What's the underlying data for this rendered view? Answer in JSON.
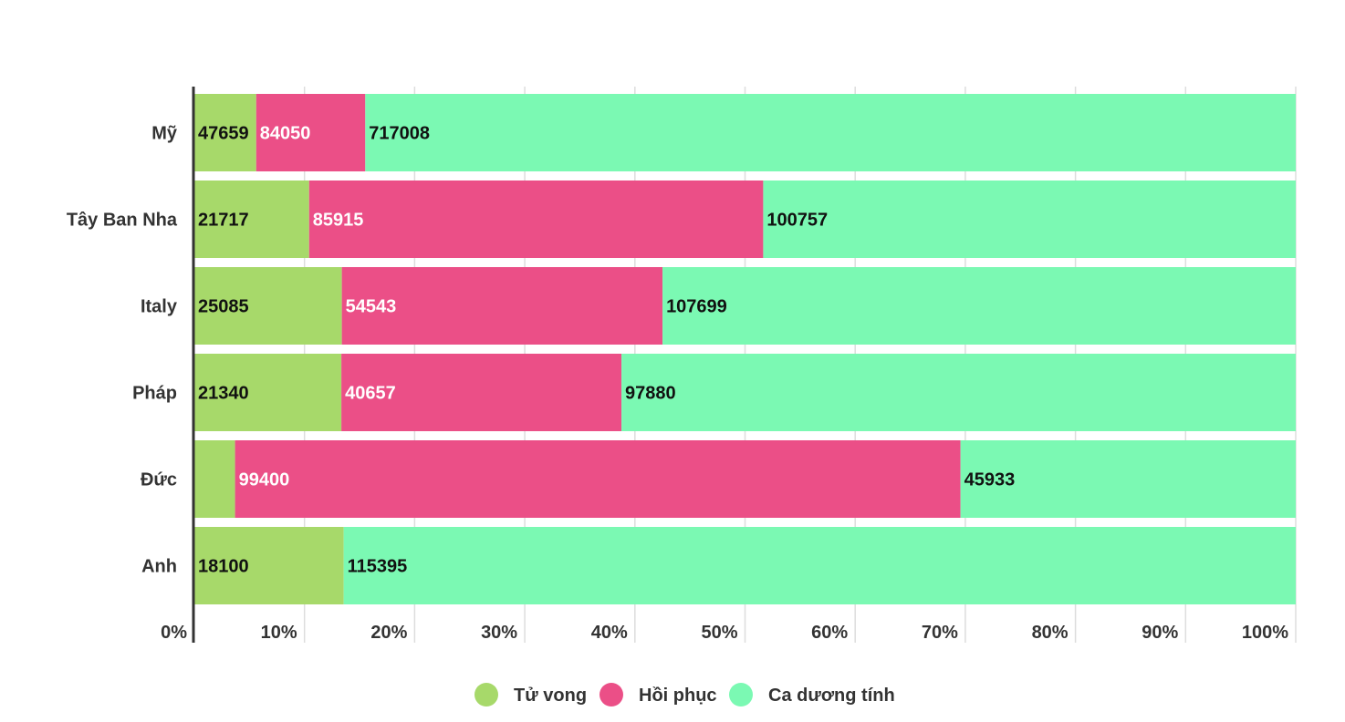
{
  "chart_data": {
    "type": "bar",
    "orientation": "horizontal",
    "stacked": "percent",
    "title": "",
    "xlabel": "",
    "ylabel": "",
    "categories": [
      "Mỹ",
      "Tây Ban Nha",
      "Italy",
      "Pháp",
      "Đức",
      "Anh"
    ],
    "series": [
      {
        "name": "Tử vong",
        "color": "#a7d96a",
        "values": [
          47659,
          21717,
          25085,
          21340,
          5575,
          18100
        ],
        "labels": [
          "47659",
          "21717",
          "25085",
          "21340",
          "",
          "18100"
        ]
      },
      {
        "name": "Hồi phục",
        "color": "#eb4f87",
        "values": [
          84050,
          85915,
          54543,
          40657,
          99400,
          null
        ],
        "labels": [
          "84050",
          "85915",
          "54543",
          "40657",
          "99400",
          ""
        ]
      },
      {
        "name": "Ca dương tính",
        "color": "#7bf9b3",
        "values": [
          717008,
          100757,
          107699,
          97880,
          45933,
          115395
        ],
        "labels": [
          "717008",
          "100757",
          "107699",
          "97880",
          "45933",
          "115395"
        ]
      }
    ],
    "x_ticks": [
      "0%",
      "10%",
      "20%",
      "30%",
      "40%",
      "50%",
      "60%",
      "70%",
      "80%",
      "90%",
      "100%"
    ],
    "xlim": [
      0,
      100
    ],
    "grid": true,
    "legend_position": "bottom"
  }
}
